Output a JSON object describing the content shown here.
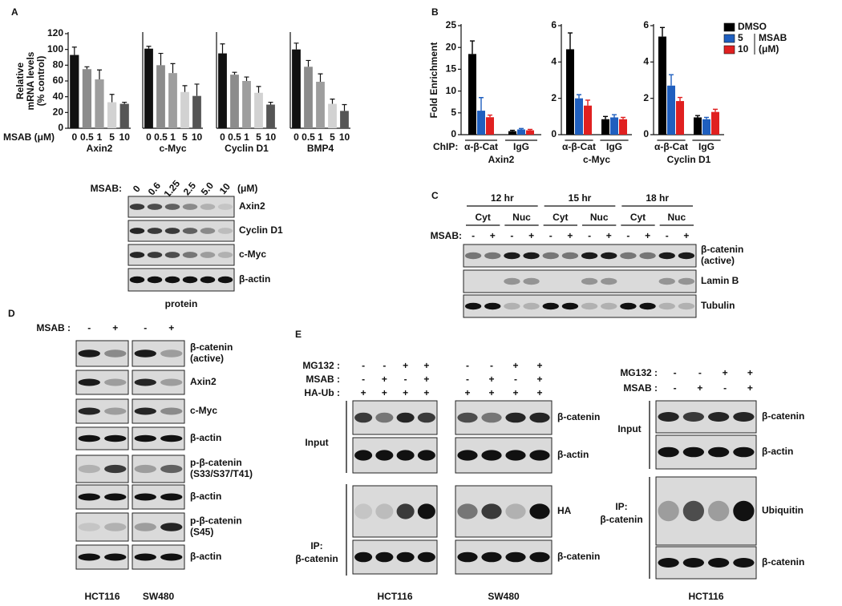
{
  "panel_labels": [
    "A",
    "B",
    "C",
    "D",
    "E"
  ],
  "chart_data": [
    {
      "type": "bar",
      "title": "Axin2",
      "xlabel": "MSAB (μM)",
      "ylabel": [
        "Relative",
        "mRNA levels",
        "(% control)"
      ],
      "categories": [
        "0",
        "0.5",
        "1",
        "5",
        "10"
      ],
      "values": [
        93,
        75,
        62,
        33,
        31
      ],
      "errors": [
        10,
        3,
        12,
        10,
        2
      ],
      "colors": [
        "#111111",
        "#8c8c8c",
        "#9e9e9e",
        "#d2d2d2",
        "#555555"
      ],
      "ylim": [
        0,
        120
      ],
      "yticks": [
        0,
        20,
        40,
        60,
        80,
        100,
        120
      ]
    },
    {
      "type": "bar",
      "title": "c-Myc",
      "categories": [
        "0",
        "0.5",
        "1",
        "5",
        "10"
      ],
      "values": [
        101,
        80,
        70,
        46,
        41
      ],
      "errors": [
        3,
        15,
        12,
        8,
        15
      ],
      "colors": [
        "#111111",
        "#8c8c8c",
        "#9e9e9e",
        "#d2d2d2",
        "#555555"
      ],
      "ylim": [
        0,
        120
      ]
    },
    {
      "type": "bar",
      "title": "Cyclin D1",
      "categories": [
        "0",
        "0.5",
        "1",
        "5",
        "10"
      ],
      "values": [
        95,
        68,
        60,
        45,
        30
      ],
      "errors": [
        12,
        3,
        5,
        8,
        3
      ],
      "colors": [
        "#111111",
        "#8c8c8c",
        "#9e9e9e",
        "#d2d2d2",
        "#555555"
      ],
      "ylim": [
        0,
        120
      ]
    },
    {
      "type": "bar",
      "title": "BMP4",
      "categories": [
        "0",
        "0.5",
        "1",
        "5",
        "10"
      ],
      "values": [
        100,
        78,
        59,
        31,
        22
      ],
      "errors": [
        8,
        8,
        10,
        6,
        8
      ],
      "colors": [
        "#111111",
        "#8c8c8c",
        "#9e9e9e",
        "#d2d2d2",
        "#555555"
      ],
      "ylim": [
        0,
        120
      ]
    },
    {
      "type": "grouped-bar",
      "title": "Axin2",
      "xlabel": "ChIP:",
      "ylabel": "Fold Enrichment",
      "categories": [
        "α-β-Cat",
        "IgG"
      ],
      "series": [
        {
          "color": "#000000",
          "values": [
            18.5,
            0.8
          ],
          "errors": [
            3,
            0.2
          ]
        },
        {
          "color": "#1f5fbf",
          "values": [
            5.5,
            1.2
          ],
          "errors": [
            3,
            0.2
          ]
        },
        {
          "color": "#e02020",
          "values": [
            4,
            1.0
          ],
          "errors": [
            0.5,
            0.2
          ]
        }
      ],
      "ylim": [
        0,
        25
      ],
      "yticks": [
        0,
        5,
        10,
        15,
        20,
        25
      ]
    },
    {
      "type": "grouped-bar",
      "title": "c-Myc",
      "categories": [
        "α-β-Cat",
        "IgG"
      ],
      "series": [
        {
          "color": "#000000",
          "values": [
            4.7,
            0.85
          ],
          "errors": [
            0.9,
            0.15
          ]
        },
        {
          "color": "#1f5fbf",
          "values": [
            2.0,
            0.95
          ],
          "errors": [
            0.2,
            0.15
          ]
        },
        {
          "color": "#e02020",
          "values": [
            1.6,
            0.85
          ],
          "errors": [
            0.3,
            0.1
          ]
        }
      ],
      "ylim": [
        0,
        6
      ],
      "yticks": [
        0,
        2,
        4,
        6
      ]
    },
    {
      "type": "grouped-bar",
      "title": "Cyclin D1",
      "categories": [
        "α-β-Cat",
        "IgG"
      ],
      "series": [
        {
          "name": "DMSO",
          "color": "#000000",
          "values": [
            5.4,
            0.95
          ],
          "errors": [
            0.5,
            0.1
          ]
        },
        {
          "name": "5",
          "color": "#1f5fbf",
          "values": [
            2.7,
            0.85
          ],
          "errors": [
            0.6,
            0.1
          ]
        },
        {
          "name": "10",
          "color": "#e02020",
          "values": [
            1.85,
            1.25
          ],
          "errors": [
            0.2,
            0.15
          ]
        }
      ],
      "legend_title": "MSAB",
      "legend_unit": "(μM)",
      "legend": "upper right",
      "ylim": [
        0,
        6
      ],
      "yticks": [
        0,
        2,
        4,
        6
      ]
    }
  ],
  "blot_a": {
    "treatment": "MSAB:",
    "doses": [
      "0",
      "0.6",
      "1.25",
      "2.5",
      "5.0",
      "10"
    ],
    "unit": "(μM)",
    "rows": [
      [
        "Axin2"
      ],
      [
        "Cyclin D1"
      ],
      [
        "c-Myc"
      ],
      [
        "β-actin"
      ]
    ],
    "caption": "protein"
  },
  "blot_c": {
    "times": [
      "12 hr",
      "15 hr",
      "18 hr"
    ],
    "fractions": [
      "Cyt",
      "Nuc",
      "Cyt",
      "Nuc",
      "Cyt",
      "Nuc"
    ],
    "treatment": "MSAB:",
    "signs": [
      "-",
      "+",
      "-",
      "+",
      "-",
      "+",
      "-",
      "+",
      "-",
      "+",
      "-",
      "+"
    ],
    "rows": [
      [
        "β-catenin",
        "(active)"
      ],
      [
        "Lamin B"
      ],
      [
        "Tubulin"
      ]
    ]
  },
  "blot_d": {
    "treatment": "MSAB :",
    "signs": [
      "-",
      "+",
      "-",
      "+"
    ],
    "rows": [
      [
        "β-catenin",
        "(active)"
      ],
      [
        "Axin2"
      ],
      [
        "c-Myc"
      ],
      [
        "β-actin"
      ],
      [
        "p-β-catenin",
        "(S33/S37/T41)"
      ],
      [
        "β-actin"
      ],
      [
        "p-β-catenin",
        "(S45)"
      ],
      [
        "β-actin"
      ]
    ],
    "cell_lines": [
      "HCT116",
      "SW480"
    ]
  },
  "blot_e_left": {
    "conditions": [
      {
        "label": "MG132 :",
        "signs": [
          "-",
          "-",
          "+",
          "+",
          "-",
          "-",
          "+",
          "+"
        ]
      },
      {
        "label": "MSAB :",
        "signs": [
          "-",
          "+",
          "-",
          "+",
          "-",
          "+",
          "-",
          "+"
        ]
      },
      {
        "label": "HA-Ub :",
        "signs": [
          "+",
          "+",
          "+",
          "+",
          "+",
          "+",
          "+",
          "+"
        ]
      }
    ],
    "sections": [
      [
        "Input"
      ],
      [
        "IP:",
        "β-catenin"
      ]
    ],
    "rows": [
      [
        "β-catenin"
      ],
      [
        "β-actin"
      ],
      [
        "HA"
      ],
      [
        "β-catenin"
      ]
    ],
    "cell_lines": [
      "HCT116",
      "SW480"
    ]
  },
  "blot_e_right": {
    "conditions": [
      {
        "label": "MG132 :",
        "signs": [
          "-",
          "-",
          "+",
          "+"
        ]
      },
      {
        "label": "MSAB :",
        "signs": [
          "-",
          "+",
          "-",
          "+"
        ]
      }
    ],
    "sections": [
      [
        "Input"
      ],
      [
        "IP:",
        "β-catenin"
      ]
    ],
    "rows": [
      [
        "β-catenin"
      ],
      [
        "β-actin"
      ],
      [
        "Ubiquitin"
      ],
      [
        "β-catenin"
      ]
    ],
    "cell_lines": [
      "HCT116"
    ]
  }
}
